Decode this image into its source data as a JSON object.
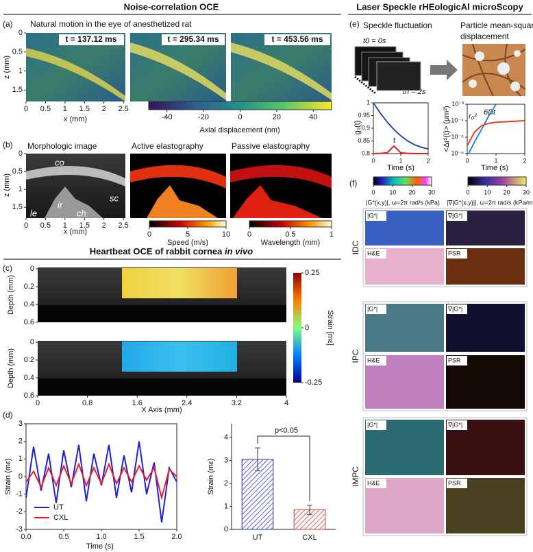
{
  "left_title": "Noise-correlation OCE",
  "a": {
    "label": "(a)",
    "caption": "Natural motion in the eye of anesthetized rat",
    "times": [
      "t = 137.12 ms",
      "t = 295.34 ms",
      "t = 453.56 ms"
    ],
    "zlabel": "z (mm)",
    "zlim": [
      0,
      1.8
    ],
    "zticks": [
      0,
      0.5,
      1,
      1.5
    ],
    "xlabel": "x (mm)",
    "xlim": [
      0,
      2.55
    ],
    "xticks": [
      0,
      0.5,
      1,
      1.5,
      2,
      2.5
    ],
    "colorbar": {
      "lim": [
        -50,
        50
      ],
      "ticks": [
        -40,
        -20,
        0,
        20,
        40
      ],
      "label": "Axial displacement (nm)"
    }
  },
  "b": {
    "label": "(b)",
    "titles": [
      "Morphologic image",
      "Active elastography",
      "Passive elastography"
    ],
    "tissue": [
      "co",
      "sc",
      "ir",
      "le",
      "ch"
    ],
    "zlabel": "z (mm)",
    "zlim": [
      0,
      1.8
    ],
    "zticks": [
      0,
      0.5,
      1,
      1.5
    ],
    "xlabel": "x (mm)",
    "xlim": [
      0,
      2.55
    ],
    "xticks": [
      0,
      0.5,
      1,
      1.5,
      2,
      2.5
    ],
    "colorbars": [
      {
        "lim": [
          0,
          10
        ],
        "ticks": [
          0,
          5,
          10
        ],
        "label": "Speed (m/s)"
      },
      {
        "lim": [
          0,
          1
        ],
        "ticks": [
          0,
          0.5,
          1
        ],
        "label": "Wavelength (mm)"
      }
    ]
  },
  "c_title": "Heartbeat OCE of rabbit cornea",
  "c_title_italic": "in vivo",
  "c": {
    "label": "(c)",
    "ylabel": "Depth (mm)",
    "ylim": [
      0,
      0.6
    ],
    "yticks": [
      0,
      0.2,
      0.4,
      0.6
    ],
    "xlabel": "X Axis (mm)",
    "xlim": [
      0,
      4
    ],
    "xticks": [
      0,
      0.8,
      1.6,
      2.4,
      3.2,
      4
    ],
    "colorbar": {
      "lim": [
        -0.25,
        0.25
      ],
      "ticks": [
        0.25,
        0,
        -0.25
      ],
      "label": "Strain [mε]"
    }
  },
  "d": {
    "label": "(d)",
    "line": {
      "ylabel": "Strain (mε)",
      "xlabel": "Time (s)",
      "xlim": [
        0,
        2
      ],
      "ylim": [
        -3,
        3
      ],
      "xticks": [
        {
          "value": 0,
          "label": "0.0"
        },
        {
          "value": 0.5,
          "label": "0.5"
        },
        {
          "value": 1,
          "label": "1.0"
        },
        {
          "value": 1.5,
          "label": "1.5"
        },
        {
          "value": 2,
          "label": "2.0"
        }
      ],
      "yticks": [
        -3,
        -2,
        -1,
        0,
        1,
        2,
        3
      ],
      "x": [
        0,
        0.1,
        0.2,
        0.3,
        0.4,
        0.5,
        0.6,
        0.7,
        0.8,
        0.9,
        1,
        1.1,
        1.2,
        1.3,
        1.4,
        1.5,
        1.6,
        1.7,
        1.8,
        1.9,
        2
      ],
      "series": [
        {
          "name": "UT",
          "color": "#1f1fd6",
          "values": [
            -1.2,
            1.7,
            -0.8,
            1.3,
            -1.5,
            1.5,
            -0.6,
            1.8,
            -1.4,
            1.3,
            -0.5,
            1.8,
            -1.2,
            1.2,
            -0.9,
            2.0,
            -1.0,
            0.8,
            -2.6,
            0.5,
            -0.3
          ]
        },
        {
          "name": "CXL",
          "color": "#e3202a",
          "values": [
            -0.3,
            0.3,
            -0.6,
            0.5,
            -0.5,
            0.6,
            -0.4,
            0.7,
            -0.5,
            0.5,
            -0.4,
            0.7,
            -0.4,
            0.5,
            -0.3,
            0.6,
            -0.2,
            0.5,
            -1.2,
            0.4,
            0.0
          ]
        }
      ]
    },
    "bar": {
      "ylabel": "Strain (mε)",
      "categories": [
        "UT",
        "CXL"
      ],
      "values": [
        3.05,
        0.85
      ],
      "errors": [
        0.5,
        0.2
      ],
      "colors": [
        "#2a2ad0",
        "#e03030"
      ],
      "ylim": [
        0,
        4.6
      ],
      "yticks": [
        0,
        1,
        2,
        3,
        4
      ],
      "annotation": "p<0.05"
    }
  },
  "right_title": "Laser Speckle rHEologicAl microScopy",
  "e": {
    "label": "(e)",
    "speckle": "Speckle fluctuation",
    "t0": "t0 = 0s",
    "tn": "tn = 2s",
    "particle": [
      "Particle mean-square",
      "displacement"
    ],
    "g2": {
      "ylabel": "g₂(t)",
      "xlabel": "Time (s)",
      "xlim": [
        0,
        2
      ],
      "ylim": [
        0.8,
        1
      ],
      "xticks": [
        0,
        1,
        2
      ],
      "yticks": [
        0.8,
        0.85,
        0.9,
        0.95,
        1
      ],
      "marker": "t",
      "x": [
        0,
        0.25,
        0.5,
        0.75,
        1,
        1.25,
        1.5,
        1.75,
        2
      ],
      "series": [
        {
          "color": "#2a4d9c",
          "values": [
            1,
            0.96,
            0.925,
            0.895,
            0.87,
            0.85,
            0.835,
            0.825,
            0.818
          ]
        },
        {
          "color": "#e0201a",
          "values": [
            0.8,
            0.801,
            0.803,
            0.83,
            0.803,
            0.801,
            0.8,
            0.8,
            0.8
          ]
        }
      ]
    },
    "msd": {
      "ylabel": "<Δr²(t)> (μm²)",
      "xlabel": "Time (s)",
      "xlim": [
        0,
        2
      ],
      "ylim": [
        1e-06,
        0.001
      ],
      "log": true,
      "xticks": [
        0,
        1,
        2
      ],
      "yticks": [
        {
          "value": 1e-06,
          "label": "10⁻⁶"
        },
        {
          "value": 1e-05,
          "label": "10⁻⁵"
        },
        {
          "value": 0.0001,
          "label": "10⁻⁴"
        },
        {
          "value": 0.001,
          "label": "10⁻³"
        }
      ],
      "annotations": [
        "r₀²",
        "6Dt"
      ],
      "series": [
        {
          "color": "#1f8ad8",
          "x": [
            0.05,
            0.25,
            0.5,
            0.75,
            1
          ],
          "values": [
            1e-06,
            5e-06,
            3e-05,
            0.0002,
            0.001
          ]
        },
        {
          "color": "#e8401a",
          "x": [
            0,
            0.25,
            0.5,
            0.75,
            1,
            1.5,
            2
          ],
          "values": [
            3e-06,
            2e-05,
            5e-05,
            7e-05,
            8e-05,
            9e-05,
            0.0001
          ]
        }
      ]
    }
  },
  "f": {
    "label": "(f)",
    "colorbars": [
      {
        "lim": [
          0,
          30
        ],
        "ticks": [
          0,
          10,
          20,
          30
        ],
        "label": "|G*(x,y)|, ω=2π rad/s (kPa)"
      },
      {
        "lim": [
          0,
          30
        ],
        "ticks": [
          0,
          10,
          20,
          30
        ],
        "label": "|∇|G*(x,y)||, ω=2π rad/s (kPa/mm)"
      }
    ],
    "groups": [
      {
        "name": "IDC",
        "panels": [
          "|G*|",
          "∇|G*|",
          "H&E",
          "PSR"
        ]
      },
      {
        "name": "IPC",
        "panels": [
          "|G*|",
          "∇|G*|",
          "H&E",
          "PSR"
        ]
      },
      {
        "name": "IMPC",
        "panels": [
          "|G*|",
          "∇|G*|",
          "H&E",
          "PSR"
        ]
      }
    ]
  }
}
